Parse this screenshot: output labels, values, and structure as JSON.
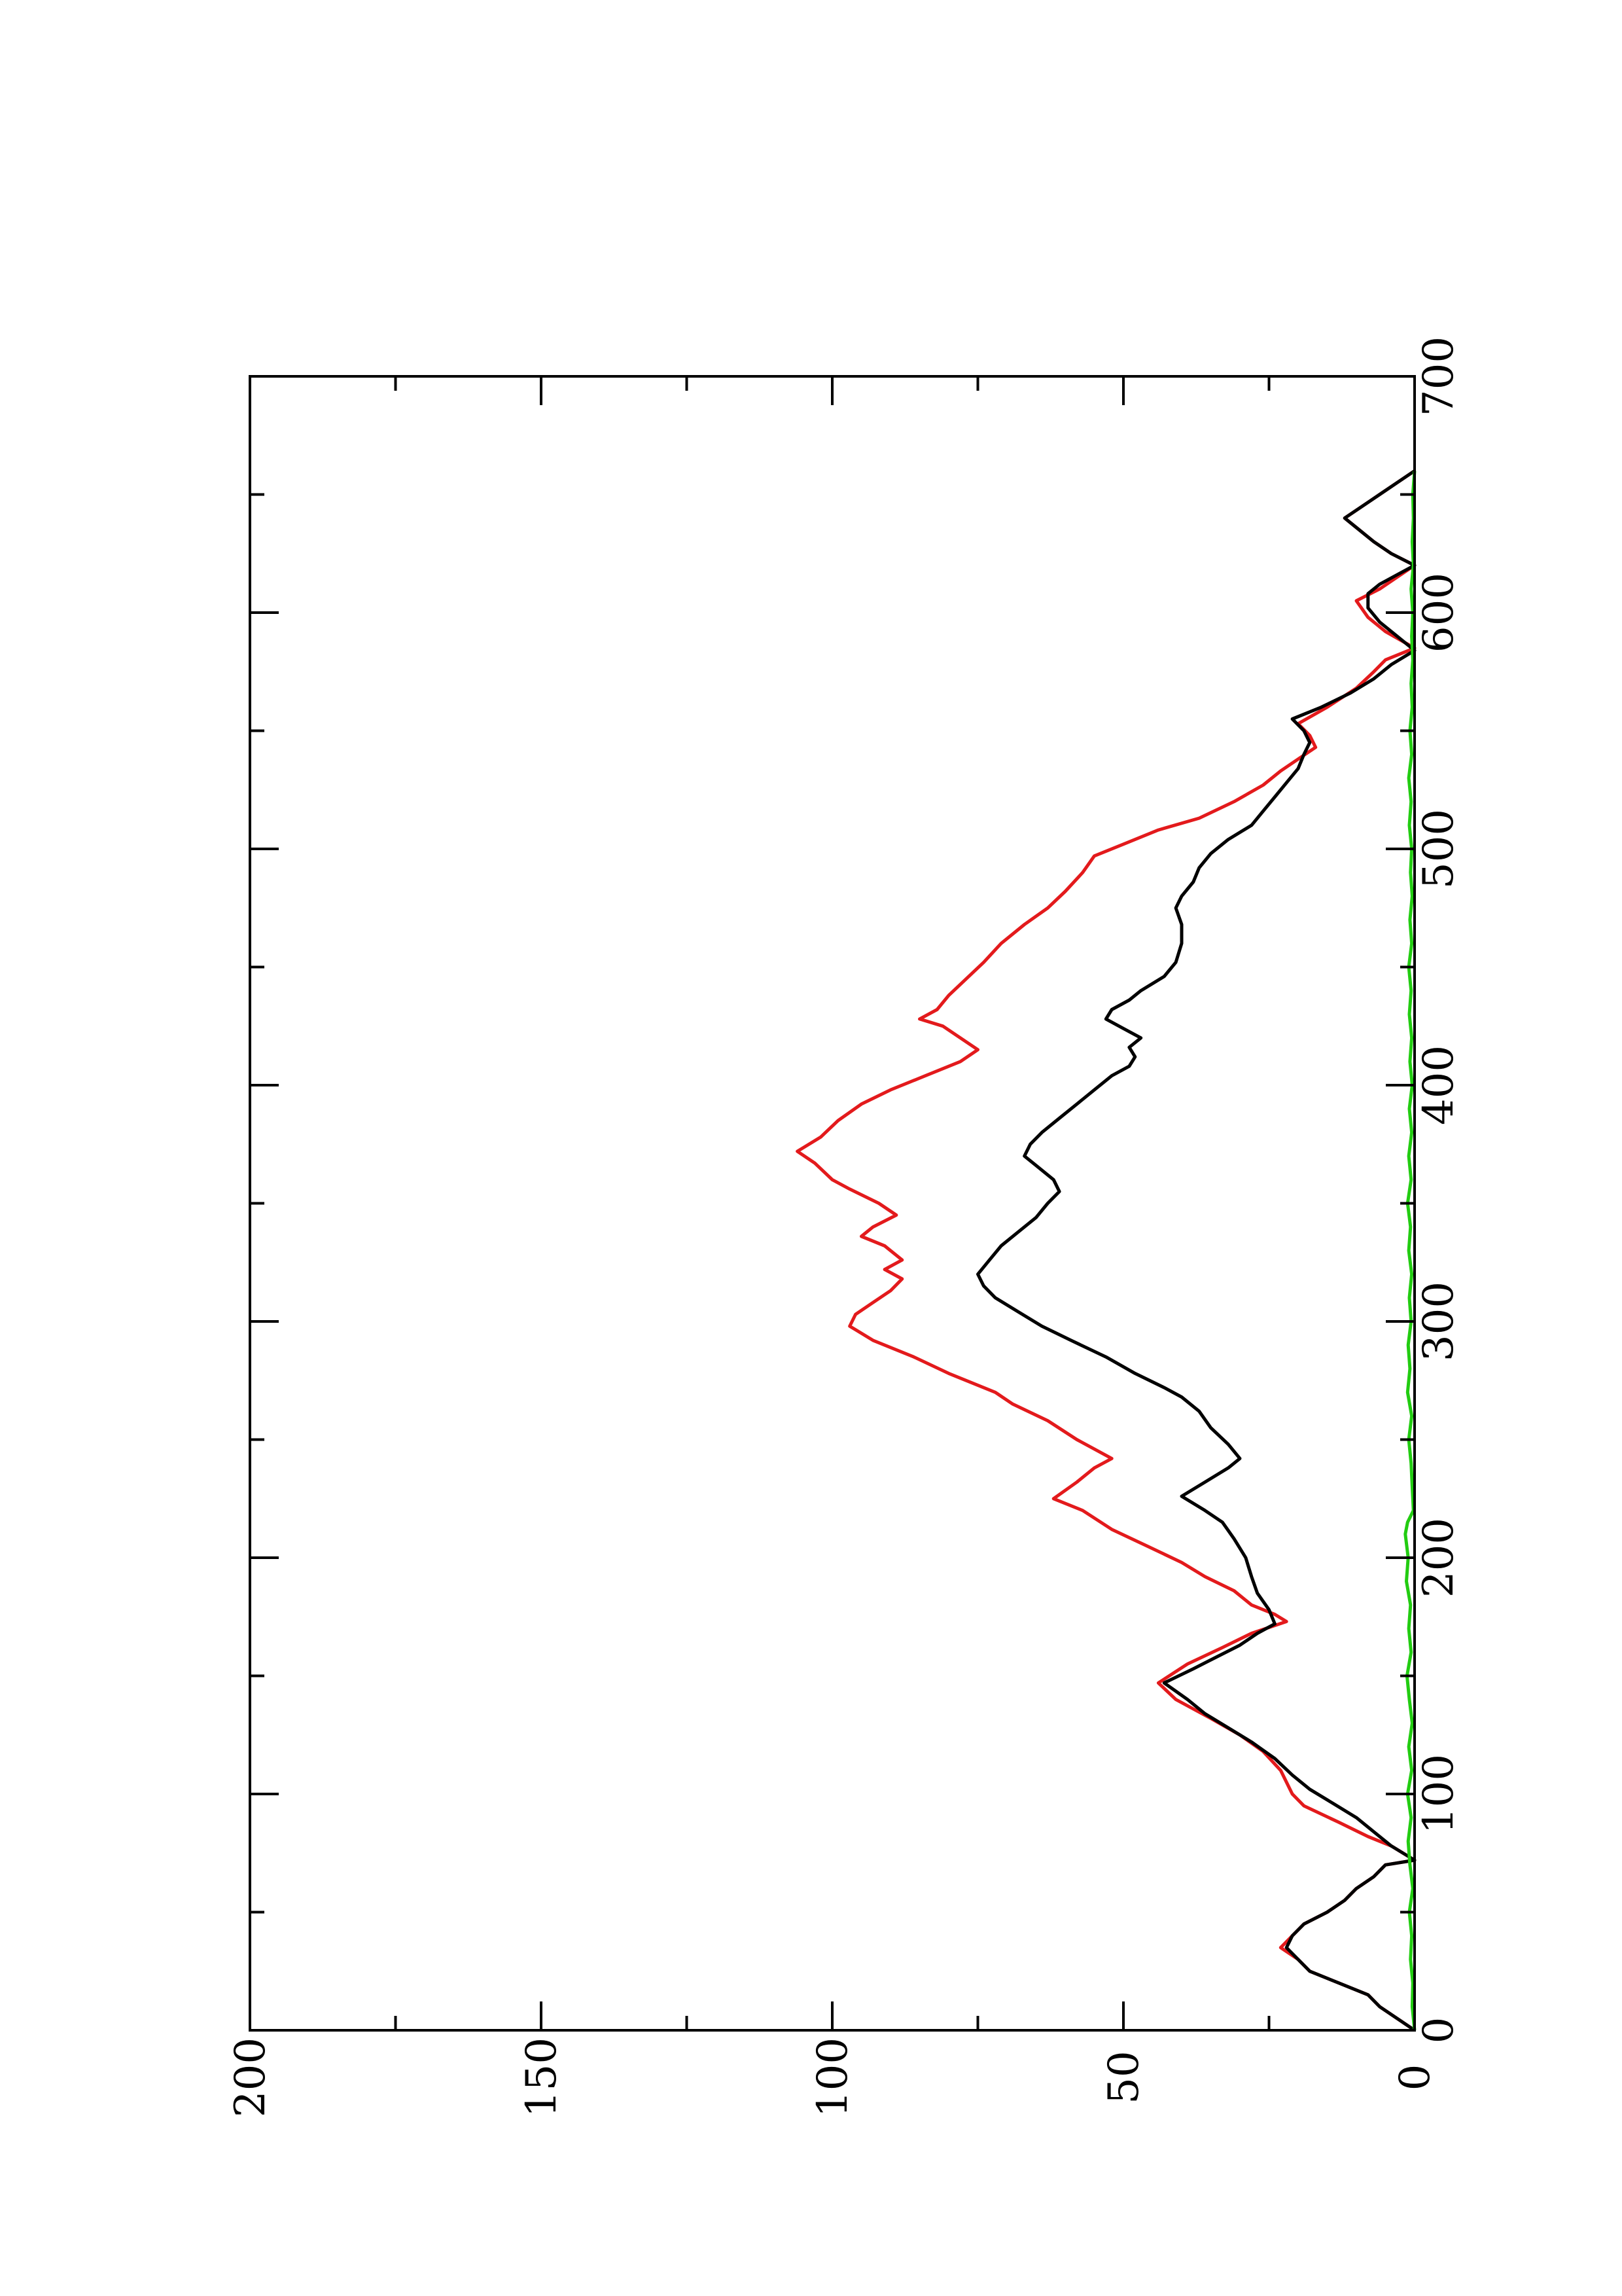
{
  "chart_data": {
    "type": "line",
    "orientation": "rotated-90-ccw",
    "title": "",
    "xlabel": "",
    "ylabel": "",
    "xlim": [
      0,
      700
    ],
    "ylim": [
      0,
      200
    ],
    "x_ticks": [
      "0",
      "100",
      "200",
      "300",
      "400",
      "500",
      "600",
      "700"
    ],
    "y_ticks": [
      "0",
      "50",
      "100",
      "150",
      "200"
    ],
    "grid": false,
    "legend": "none",
    "series": [
      {
        "color": "#e31a1c",
        "points": [
          [
            0,
            0
          ],
          [
            5,
            3
          ],
          [
            10,
            6
          ],
          [
            15,
            8
          ],
          [
            20,
            13
          ],
          [
            25,
            18
          ],
          [
            30,
            20
          ],
          [
            35,
            23
          ],
          [
            40,
            21
          ],
          [
            45,
            19
          ],
          [
            50,
            15
          ],
          [
            55,
            12
          ],
          [
            60,
            10
          ],
          [
            65,
            7
          ],
          [
            70,
            5
          ],
          [
            72,
            0
          ],
          [
            78,
            4
          ],
          [
            82,
            8
          ],
          [
            88,
            13
          ],
          [
            95,
            19
          ],
          [
            100,
            21
          ],
          [
            110,
            23
          ],
          [
            118,
            26
          ],
          [
            125,
            30
          ],
          [
            132,
            35
          ],
          [
            140,
            41
          ],
          [
            147,
            44
          ],
          [
            155,
            39
          ],
          [
            162,
            33
          ],
          [
            168,
            28
          ],
          [
            173,
            22
          ],
          [
            176,
            24
          ],
          [
            180,
            28
          ],
          [
            186,
            31
          ],
          [
            192,
            36
          ],
          [
            198,
            40
          ],
          [
            205,
            46
          ],
          [
            212,
            52
          ],
          [
            220,
            57
          ],
          [
            225,
            62
          ],
          [
            232,
            58
          ],
          [
            238,
            55
          ],
          [
            242,
            52
          ],
          [
            246,
            55
          ],
          [
            250,
            58
          ],
          [
            258,
            63
          ],
          [
            265,
            69
          ],
          [
            270,
            72
          ],
          [
            278,
            80
          ],
          [
            285,
            86
          ],
          [
            292,
            93
          ],
          [
            298,
            97
          ],
          [
            303,
            96
          ],
          [
            308,
            93
          ],
          [
            313,
            90
          ],
          [
            318,
            88
          ],
          [
            322,
            91
          ],
          [
            326,
            88
          ],
          [
            332,
            91
          ],
          [
            336,
            95
          ],
          [
            340,
            93
          ],
          [
            345,
            89
          ],
          [
            350,
            92
          ],
          [
            356,
            97
          ],
          [
            360,
            100
          ],
          [
            367,
            103
          ],
          [
            372,
            106
          ],
          [
            378,
            102
          ],
          [
            385,
            99
          ],
          [
            392,
            95
          ],
          [
            398,
            90
          ],
          [
            404,
            84
          ],
          [
            410,
            78
          ],
          [
            415,
            75
          ],
          [
            420,
            78
          ],
          [
            425,
            81
          ],
          [
            428,
            85
          ],
          [
            432,
            82
          ],
          [
            438,
            80
          ],
          [
            445,
            77
          ],
          [
            452,
            74
          ],
          [
            460,
            71
          ],
          [
            468,
            67
          ],
          [
            475,
            63
          ],
          [
            482,
            60
          ],
          [
            490,
            57
          ],
          [
            497,
            55
          ],
          [
            502,
            50
          ],
          [
            508,
            44
          ],
          [
            513,
            37
          ],
          [
            520,
            31
          ],
          [
            527,
            26
          ],
          [
            533,
            23
          ],
          [
            538,
            20
          ],
          [
            543,
            17
          ],
          [
            548,
            18
          ],
          [
            553,
            20
          ],
          [
            560,
            15
          ],
          [
            568,
            10
          ],
          [
            575,
            7
          ],
          [
            580,
            5
          ],
          [
            585,
            0
          ],
          [
            592,
            5
          ],
          [
            598,
            8
          ],
          [
            605,
            10
          ],
          [
            610,
            6
          ],
          [
            615,
            3
          ],
          [
            620,
            0
          ],
          [
            625,
            4
          ],
          [
            630,
            7
          ],
          [
            636,
            10
          ],
          [
            640,
            12
          ],
          [
            645,
            9
          ],
          [
            650,
            6
          ],
          [
            655,
            3
          ],
          [
            660,
            0
          ]
        ]
      },
      {
        "color": "#000000",
        "points": [
          [
            0,
            0
          ],
          [
            5,
            3
          ],
          [
            10,
            6
          ],
          [
            15,
            8
          ],
          [
            20,
            13
          ],
          [
            25,
            18
          ],
          [
            30,
            20
          ],
          [
            35,
            22
          ],
          [
            40,
            21
          ],
          [
            45,
            19
          ],
          [
            50,
            15
          ],
          [
            55,
            12
          ],
          [
            60,
            10
          ],
          [
            65,
            7
          ],
          [
            70,
            5
          ],
          [
            72,
            0
          ],
          [
            78,
            4
          ],
          [
            84,
            7
          ],
          [
            90,
            10
          ],
          [
            96,
            14
          ],
          [
            102,
            18
          ],
          [
            108,
            21
          ],
          [
            115,
            24
          ],
          [
            122,
            28
          ],
          [
            128,
            32
          ],
          [
            134,
            36
          ],
          [
            140,
            39
          ],
          [
            147,
            43
          ],
          [
            153,
            38
          ],
          [
            158,
            34
          ],
          [
            163,
            30
          ],
          [
            168,
            27
          ],
          [
            172,
            24
          ],
          [
            178,
            25
          ],
          [
            185,
            27
          ],
          [
            192,
            28
          ],
          [
            200,
            29
          ],
          [
            208,
            31
          ],
          [
            215,
            33
          ],
          [
            220,
            36
          ],
          [
            226,
            40
          ],
          [
            232,
            36
          ],
          [
            238,
            32
          ],
          [
            242,
            30
          ],
          [
            248,
            32
          ],
          [
            255,
            35
          ],
          [
            262,
            37
          ],
          [
            268,
            40
          ],
          [
            272,
            43
          ],
          [
            278,
            48
          ],
          [
            285,
            53
          ],
          [
            292,
            59
          ],
          [
            298,
            64
          ],
          [
            304,
            68
          ],
          [
            310,
            72
          ],
          [
            315,
            74
          ],
          [
            320,
            75
          ],
          [
            326,
            73
          ],
          [
            332,
            71
          ],
          [
            338,
            68
          ],
          [
            344,
            65
          ],
          [
            350,
            63
          ],
          [
            355,
            61
          ],
          [
            360,
            62
          ],
          [
            366,
            65
          ],
          [
            370,
            67
          ],
          [
            375,
            66
          ],
          [
            380,
            64
          ],
          [
            386,
            61
          ],
          [
            392,
            58
          ],
          [
            398,
            55
          ],
          [
            404,
            52
          ],
          [
            408,
            49
          ],
          [
            412,
            48
          ],
          [
            416,
            49
          ],
          [
            420,
            47
          ],
          [
            424,
            50
          ],
          [
            428,
            53
          ],
          [
            432,
            52
          ],
          [
            436,
            49
          ],
          [
            440,
            47
          ],
          [
            446,
            43
          ],
          [
            452,
            41
          ],
          [
            460,
            40
          ],
          [
            468,
            40
          ],
          [
            475,
            41
          ],
          [
            480,
            40
          ],
          [
            486,
            38
          ],
          [
            492,
            37
          ],
          [
            498,
            35
          ],
          [
            504,
            32
          ],
          [
            510,
            28
          ],
          [
            516,
            26
          ],
          [
            522,
            24
          ],
          [
            528,
            22
          ],
          [
            534,
            20
          ],
          [
            540,
            19
          ],
          [
            545,
            18
          ],
          [
            550,
            19
          ],
          [
            555,
            21
          ],
          [
            560,
            16
          ],
          [
            566,
            11
          ],
          [
            572,
            7
          ],
          [
            578,
            4
          ],
          [
            584,
            0
          ],
          [
            590,
            3
          ],
          [
            596,
            6
          ],
          [
            602,
            8
          ],
          [
            608,
            8
          ],
          [
            612,
            6
          ],
          [
            616,
            3
          ],
          [
            620,
            0
          ],
          [
            625,
            4
          ],
          [
            630,
            7
          ],
          [
            636,
            10
          ],
          [
            640,
            12
          ],
          [
            645,
            9
          ],
          [
            650,
            6
          ],
          [
            655,
            3
          ],
          [
            660,
            0
          ]
        ]
      },
      {
        "color": "#22cc11",
        "points": [
          [
            0,
            0
          ],
          [
            10,
            0.4
          ],
          [
            20,
            0.3
          ],
          [
            30,
            0.7
          ],
          [
            40,
            0.5
          ],
          [
            50,
            0.9
          ],
          [
            60,
            0.3
          ],
          [
            70,
            0.8
          ],
          [
            80,
            1.1
          ],
          [
            90,
            0.6
          ],
          [
            100,
            1.2
          ],
          [
            110,
            0.5
          ],
          [
            120,
            1.0
          ],
          [
            130,
            0.4
          ],
          [
            140,
            0.9
          ],
          [
            150,
            1.3
          ],
          [
            160,
            0.6
          ],
          [
            170,
            1.0
          ],
          [
            180,
            0.7
          ],
          [
            190,
            1.4
          ],
          [
            200,
            1.1
          ],
          [
            210,
            1.6
          ],
          [
            215,
            1.2
          ],
          [
            220,
            0.2
          ],
          [
            230,
            0.4
          ],
          [
            240,
            0.6
          ],
          [
            250,
            1.0
          ],
          [
            260,
            0.5
          ],
          [
            270,
            1.2
          ],
          [
            280,
            0.8
          ],
          [
            290,
            1.1
          ],
          [
            300,
            0.6
          ],
          [
            310,
            0.9
          ],
          [
            320,
            0.5
          ],
          [
            330,
            1.0
          ],
          [
            340,
            0.7
          ],
          [
            350,
            1.2
          ],
          [
            360,
            0.6
          ],
          [
            370,
            1.0
          ],
          [
            380,
            0.5
          ],
          [
            390,
            0.9
          ],
          [
            400,
            0.4
          ],
          [
            410,
            0.8
          ],
          [
            420,
            0.5
          ],
          [
            430,
            0.9
          ],
          [
            440,
            0.6
          ],
          [
            450,
            1.0
          ],
          [
            460,
            0.5
          ],
          [
            470,
            0.8
          ],
          [
            480,
            0.4
          ],
          [
            490,
            0.7
          ],
          [
            500,
            0.5
          ],
          [
            510,
            0.9
          ],
          [
            520,
            0.6
          ],
          [
            530,
            1.0
          ],
          [
            540,
            0.5
          ],
          [
            550,
            0.8
          ],
          [
            560,
            0.4
          ],
          [
            570,
            0.6
          ],
          [
            580,
            0.3
          ],
          [
            590,
            0.5
          ],
          [
            600,
            0.3
          ],
          [
            610,
            0.6
          ],
          [
            620,
            0.2
          ],
          [
            630,
            0.4
          ],
          [
            640,
            0.2
          ],
          [
            650,
            0.3
          ],
          [
            660,
            0
          ]
        ]
      }
    ]
  }
}
